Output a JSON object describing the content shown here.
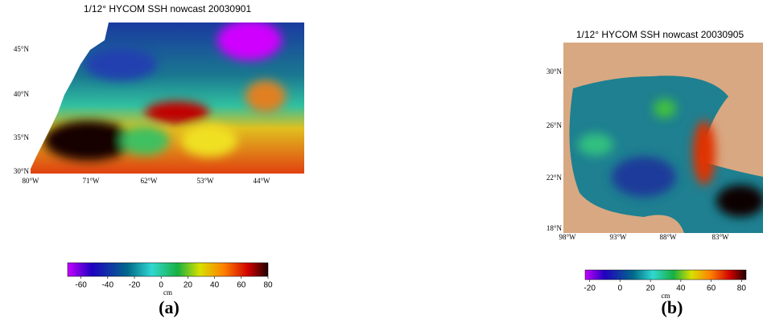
{
  "panels": [
    {
      "title": "1/12° HYCOM SSH nowcast 20030901",
      "lat_labels": [
        "45°N",
        "40°N",
        "35°N",
        "30°N"
      ],
      "lon_labels": [
        "80°W",
        "71°W",
        "62°W",
        "53°W",
        "44°W"
      ],
      "colorbar": {
        "range": [
          -70,
          80
        ],
        "ticks": [
          -60,
          -40,
          -20,
          0,
          20,
          40,
          60,
          80
        ],
        "unit": "cm"
      },
      "caption": "(a)"
    },
    {
      "title": "1/12° HYCOM SSH nowcast 20030905",
      "lat_labels": [
        "30°N",
        "26°N",
        "22°N",
        "18°N"
      ],
      "lon_labels": [
        "98°W",
        "93°W",
        "88°W",
        "83°W"
      ],
      "colorbar": {
        "range": [
          -23,
          83
        ],
        "ticks": [
          -20,
          0,
          20,
          40,
          60,
          80
        ],
        "unit": "cm"
      },
      "caption": "(b)"
    }
  ]
}
